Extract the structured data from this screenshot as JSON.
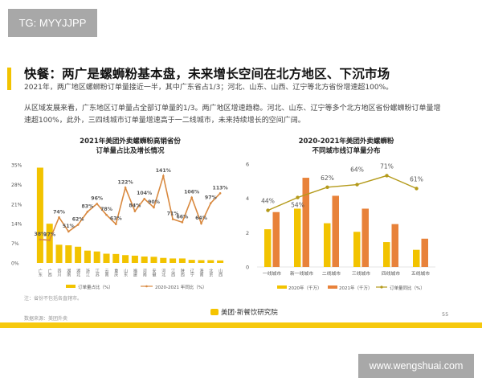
{
  "watermark_top": "TG: MYYJJPP",
  "watermark_bottom": "www.wengshuai.com",
  "header": {
    "title": "快餐：两广是螺蛳粉基本盘，未来增长空间在北方地区、下沉市场",
    "subtitle": "2021年，两广地区螺蛳粉订单量接近一半，其中广东省占1/3；河北、山东、山西、辽宁等北方省份增速超100%。"
  },
  "paragraph": "从区域发展来看，广东地区订单量占全部订单量的1/3。两广地区增速趋稳。河北、山东、辽宁等多个北方地区省份螺蛳粉订单量增速超100%，此外，三四线城市订单量增速高于一二线城市，未来持续增长的空间广阔。",
  "note": "注：省份不包括各直辖市。",
  "source": "数据来源：美团外卖",
  "footer_logo_text": "美团·新餐饮研究院",
  "page_number": "55",
  "colors": {
    "yellow": "#f2c300",
    "orange": "#e8823a",
    "line_orange": "#d9893f",
    "olive": "#b49a1a"
  },
  "chart_data": [
    {
      "type": "bar+line",
      "title": [
        "2021年美团外卖螺蛳粉高销省份",
        "订单量占比及增长情况"
      ],
      "categories": [
        "广东",
        "广西",
        "四川",
        "湖南",
        "湖北",
        "浙江",
        "江苏",
        "云南",
        "重庆",
        "山东",
        "福建",
        "河南",
        "安徽",
        "河北",
        "江西",
        "陕西",
        "辽宁",
        "海南",
        "北京",
        "山西"
      ],
      "yticks": [
        "0%",
        "7%",
        "14%",
        "21%",
        "28%",
        "35%"
      ],
      "ylim": [
        0,
        35
      ],
      "series": [
        {
          "name": "订单量占比（%）",
          "type": "bar",
          "values": [
            34,
            14,
            6.5,
            6.3,
            5.8,
            4.4,
            4.1,
            3.3,
            3.2,
            2.8,
            2.6,
            2.3,
            2.2,
            1.8,
            1.6,
            1.6,
            1.1,
            1.0,
            1.0,
            0.9
          ]
        },
        {
          "name": "2020-2021 年同比（%）",
          "type": "line",
          "values": [
            38,
            37,
            74,
            51,
            62,
            83,
            96,
            78,
            63,
            122,
            84,
            104,
            90,
            141,
            71,
            66,
            106,
            64,
            97,
            113
          ],
          "labels": [
            "38%",
            "37%",
            "74%",
            "51%",
            "62%",
            "83%",
            "96%",
            "78%",
            "63%",
            "122%",
            "84%",
            "104%",
            "90%",
            "141%",
            "71%",
            "66%",
            "106%",
            "64%",
            "97%",
            "113%"
          ]
        }
      ],
      "legend": "bottom"
    },
    {
      "type": "bar+line",
      "title": [
        "2020-2021年美团外卖螺蛳粉",
        "不同城市线订单量分布"
      ],
      "categories": [
        "一线城市",
        "新一线城市",
        "二线城市",
        "三线城市",
        "四线城市",
        "五线城市"
      ],
      "yticks": [
        "0",
        "2",
        "4",
        "6"
      ],
      "ylim": [
        0,
        6
      ],
      "series": [
        {
          "name": "2020年（千万）",
          "type": "bar",
          "values": [
            2.2,
            3.4,
            2.55,
            2.05,
            1.45,
            1.0
          ]
        },
        {
          "name": "2021年（千万）",
          "type": "bar",
          "values": [
            3.2,
            5.2,
            4.15,
            3.4,
            2.5,
            1.65
          ]
        },
        {
          "name": "订单量同比（%）",
          "type": "line",
          "values": [
            44,
            54,
            62,
            64,
            71,
            61
          ],
          "labels": [
            "44%",
            "54%",
            "62%",
            "64%",
            "71%",
            "61%"
          ]
        }
      ],
      "legend": "bottom"
    }
  ]
}
